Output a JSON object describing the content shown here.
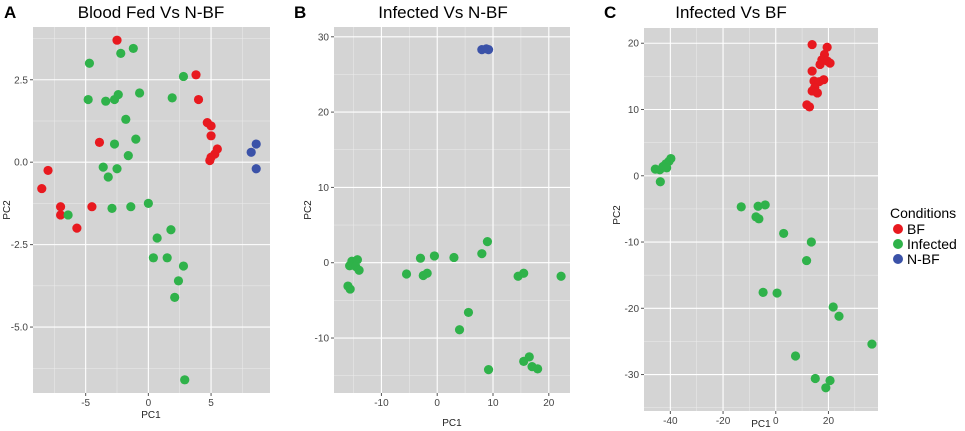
{
  "colors": {
    "BF": "#e8191f",
    "Infected": "#2fb24a",
    "N-BF": "#3b52a8",
    "panel_bg": "#d4d4d4"
  },
  "legend": {
    "title": "Conditions",
    "items": [
      {
        "key": "BF",
        "label": "BF"
      },
      {
        "key": "Infected",
        "label": "Infected"
      },
      {
        "key": "N-BF",
        "label": "N-BF"
      }
    ]
  },
  "chart_data": [
    {
      "type": "scatter",
      "letter": "A",
      "title": "Blood Fed Vs N-BF",
      "xlabel": "PC1",
      "ylabel": "PC2",
      "xlim": [
        -9.2,
        9.7
      ],
      "ylim": [
        -7.0,
        4.1
      ],
      "xticks": [
        -5,
        0,
        5
      ],
      "xtick_labels": [
        "-5",
        "0",
        "5"
      ],
      "yticks": [
        -5,
        -2.5,
        0,
        2.5
      ],
      "ytick_labels": [
        "-5.0",
        "-2.5",
        "0.0",
        "2.5"
      ],
      "series": [
        {
          "name": "BF",
          "points": [
            [
              -2.5,
              3.7
            ],
            [
              3.8,
              2.65
            ],
            [
              4.0,
              1.9
            ],
            [
              4.7,
              1.2
            ],
            [
              5.0,
              1.1
            ],
            [
              5.0,
              0.8
            ],
            [
              5.5,
              0.4
            ],
            [
              5.3,
              0.25
            ],
            [
              5.0,
              0.15
            ],
            [
              4.9,
              0.05
            ],
            [
              -3.9,
              0.6
            ],
            [
              -8.0,
              -0.25
            ],
            [
              -8.5,
              -0.8
            ],
            [
              -7.0,
              -1.35
            ],
            [
              -7.0,
              -1.6
            ],
            [
              -5.7,
              -2.0
            ],
            [
              -4.5,
              -1.35
            ]
          ]
        },
        {
          "name": "Infected",
          "points": [
            [
              -4.7,
              3.0
            ],
            [
              -2.2,
              3.3
            ],
            [
              -1.2,
              3.45
            ],
            [
              -1.8,
              1.3
            ],
            [
              2.8,
              2.6
            ],
            [
              -4.8,
              1.9
            ],
            [
              -3.4,
              1.85
            ],
            [
              -2.7,
              1.9
            ],
            [
              -2.4,
              2.05
            ],
            [
              -0.7,
              2.1
            ],
            [
              1.9,
              1.95
            ],
            [
              -1.0,
              0.7
            ],
            [
              -3.6,
              -0.15
            ],
            [
              -3.2,
              -0.45
            ],
            [
              -2.7,
              0.55
            ],
            [
              -2.5,
              -0.2
            ],
            [
              -1.6,
              0.2
            ],
            [
              -6.4,
              -1.6
            ],
            [
              -2.9,
              -1.4
            ],
            [
              -1.4,
              -1.35
            ],
            [
              0.0,
              -1.25
            ],
            [
              0.7,
              -2.3
            ],
            [
              1.8,
              -2.05
            ],
            [
              1.5,
              -2.9
            ],
            [
              0.4,
              -2.9
            ],
            [
              2.8,
              -3.15
            ],
            [
              2.4,
              -3.6
            ],
            [
              2.1,
              -4.1
            ],
            [
              2.9,
              -6.6
            ]
          ]
        },
        {
          "name": "N-BF",
          "points": [
            [
              8.2,
              0.3
            ],
            [
              8.6,
              0.55
            ],
            [
              8.6,
              -0.2
            ]
          ]
        }
      ]
    },
    {
      "type": "scatter",
      "letter": "B",
      "title": "Infected Vs N-BF",
      "xlabel": "PC1",
      "ylabel": "PC2",
      "xlim": [
        -18.5,
        23.8
      ],
      "ylim": [
        -17.3,
        31.3
      ],
      "xticks": [
        -10,
        0,
        10,
        20
      ],
      "xtick_labels": [
        "-10",
        "0",
        "10",
        "20"
      ],
      "yticks": [
        -10,
        0,
        10,
        20,
        30
      ],
      "ytick_labels": [
        "-10",
        "0",
        "10",
        "20",
        "30"
      ],
      "series": [
        {
          "name": "Infected",
          "points": [
            [
              -15.3,
              0.2
            ],
            [
              -14.3,
              0.4
            ],
            [
              -15.7,
              -0.4
            ],
            [
              -14.6,
              -0.5
            ],
            [
              -14.0,
              -1.0
            ],
            [
              -16.0,
              -3.1
            ],
            [
              -15.6,
              -3.5
            ],
            [
              -5.5,
              -1.5
            ],
            [
              -3.0,
              0.6
            ],
            [
              -2.5,
              -1.7
            ],
            [
              -1.8,
              -1.4
            ],
            [
              -0.5,
              0.9
            ],
            [
              3.0,
              0.7
            ],
            [
              5.6,
              -6.6
            ],
            [
              4.0,
              -8.9
            ],
            [
              8.0,
              1.2
            ],
            [
              9.0,
              2.8
            ],
            [
              9.2,
              -14.2
            ],
            [
              14.5,
              -1.8
            ],
            [
              15.5,
              -1.4
            ],
            [
              16.5,
              -12.5
            ],
            [
              17.0,
              -13.8
            ],
            [
              15.5,
              -13.1
            ],
            [
              18.0,
              -14.1
            ],
            [
              22.2,
              -1.8
            ]
          ]
        },
        {
          "name": "N-BF",
          "points": [
            [
              8.0,
              28.3
            ],
            [
              8.8,
              28.4
            ],
            [
              9.2,
              28.3
            ]
          ]
        }
      ]
    },
    {
      "type": "scatter",
      "letter": "C",
      "title": "Infected Vs BF",
      "xlabel": "PC1",
      "ylabel": "PC2",
      "xlim": [
        -50.0,
        38.8
      ],
      "ylim": [
        -35.5,
        22.3
      ],
      "xticks": [
        -40,
        -20,
        0,
        20
      ],
      "xtick_labels": [
        "-40",
        "-20",
        "0",
        "20"
      ],
      "yticks": [
        -30,
        -20,
        -10,
        0,
        10,
        20
      ],
      "ytick_labels": [
        "-30",
        "-20",
        "-10",
        "0",
        "10",
        "20"
      ],
      "series": [
        {
          "name": "BF",
          "points": [
            [
              13.8,
              19.8
            ],
            [
              19.5,
              19.4
            ],
            [
              18.5,
              18.3
            ],
            [
              17.5,
              17.5
            ],
            [
              16.8,
              16.8
            ],
            [
              19.6,
              17.3
            ],
            [
              20.6,
              17.0
            ],
            [
              13.8,
              15.8
            ],
            [
              14.5,
              14.3
            ],
            [
              16.5,
              14.2
            ],
            [
              18.2,
              14.5
            ],
            [
              14.8,
              13.3
            ],
            [
              13.8,
              12.8
            ],
            [
              15.8,
              12.5
            ],
            [
              11.8,
              10.7
            ],
            [
              12.8,
              10.4
            ]
          ]
        },
        {
          "name": "Infected",
          "points": [
            [
              -39.8,
              2.6
            ],
            [
              -40.5,
              2.2
            ],
            [
              -41.7,
              1.8
            ],
            [
              -42.8,
              1.4
            ],
            [
              -44.0,
              0.9
            ],
            [
              -41.4,
              1.2
            ],
            [
              -43.8,
              -0.9
            ],
            [
              -45.7,
              1.0
            ],
            [
              -13.1,
              -4.7
            ],
            [
              -6.7,
              -4.6
            ],
            [
              -4.0,
              -4.4
            ],
            [
              -6.4,
              -6.5
            ],
            [
              -7.5,
              -6.2
            ],
            [
              -4.8,
              -17.6
            ],
            [
              0.5,
              -17.7
            ],
            [
              3.0,
              -8.7
            ],
            [
              11.7,
              -12.8
            ],
            [
              13.5,
              -10.0
            ],
            [
              7.5,
              -27.2
            ],
            [
              15.0,
              -30.6
            ],
            [
              19.0,
              -32.0
            ],
            [
              20.6,
              -30.9
            ],
            [
              21.8,
              -19.8
            ],
            [
              24.0,
              -21.2
            ],
            [
              36.5,
              -25.4
            ]
          ]
        }
      ]
    }
  ]
}
